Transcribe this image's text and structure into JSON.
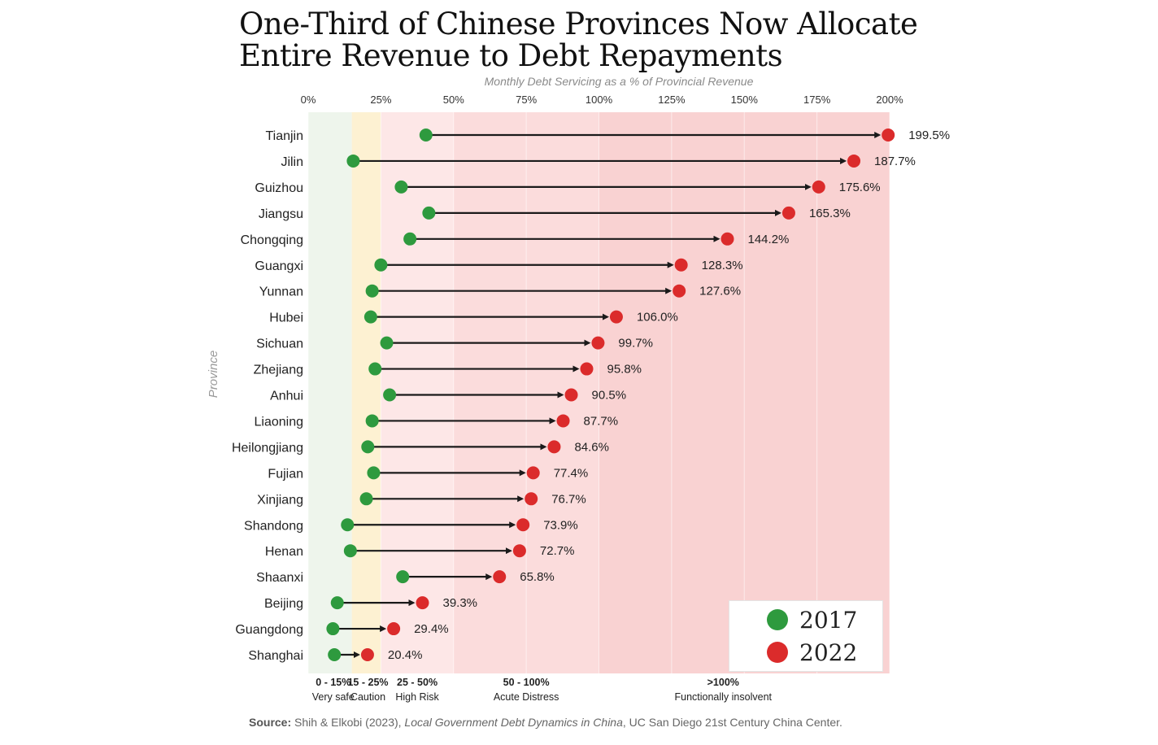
{
  "title": {
    "line1": "One-Third of Chinese Provinces Now Allocate",
    "line2": "Entire Revenue to Debt Repayments"
  },
  "colors": {
    "y2017": "#2e9a3e",
    "y2022": "#db2b2b",
    "arrow": "#1a1a1a",
    "band_very_safe": "#eef5ec",
    "band_caution": "#fdf1d2",
    "band_high_risk": "#fde7e7",
    "band_acute": "#fbdcdc",
    "band_insolvent": "#f9d2d2"
  },
  "legend": {
    "a": "2017",
    "b": "2022"
  },
  "source": {
    "label": "Source:",
    "pre": " Shih & Elkobi (2023), ",
    "italic": "Local Government Debt Dynamics in China",
    "post": ", UC San Diego 21st Century China Center."
  },
  "chart_data": {
    "type": "dumbbell",
    "title": "One-Third of Chinese Provinces Now Allocate Entire Revenue to Debt Repayments",
    "xlabel": "Monthly Debt Servicing as a % of Provincial Revenue",
    "ylabel": "Province",
    "xlim": [
      0,
      200
    ],
    "xticks": [
      0,
      25,
      50,
      75,
      100,
      125,
      150,
      175,
      200
    ],
    "xtick_labels": [
      "0%",
      "25%",
      "50%",
      "75%",
      "100%",
      "125%",
      "150%",
      "175%",
      "200%"
    ],
    "series_names": [
      "2017",
      "2022"
    ],
    "provinces": [
      {
        "name": "Tianjin",
        "v2017": 40.5,
        "v2022": 199.5,
        "label": "199.5%"
      },
      {
        "name": "Jilin",
        "v2017": 15.5,
        "v2022": 187.7,
        "label": "187.7%"
      },
      {
        "name": "Guizhou",
        "v2017": 32.0,
        "v2022": 175.6,
        "label": "175.6%"
      },
      {
        "name": "Jiangsu",
        "v2017": 41.5,
        "v2022": 165.3,
        "label": "165.3%"
      },
      {
        "name": "Chongqing",
        "v2017": 35.0,
        "v2022": 144.2,
        "label": "144.2%"
      },
      {
        "name": "Guangxi",
        "v2017": 25.0,
        "v2022": 128.3,
        "label": "128.3%"
      },
      {
        "name": "Yunnan",
        "v2017": 22.0,
        "v2022": 127.6,
        "label": "127.6%"
      },
      {
        "name": "Hubei",
        "v2017": 21.5,
        "v2022": 106.0,
        "label": "106.0%"
      },
      {
        "name": "Sichuan",
        "v2017": 27.0,
        "v2022": 99.7,
        "label": "99.7%"
      },
      {
        "name": "Zhejiang",
        "v2017": 23.0,
        "v2022": 95.8,
        "label": "95.8%"
      },
      {
        "name": "Anhui",
        "v2017": 28.0,
        "v2022": 90.5,
        "label": "90.5%"
      },
      {
        "name": "Liaoning",
        "v2017": 22.0,
        "v2022": 87.7,
        "label": "87.7%"
      },
      {
        "name": "Heilongjiang",
        "v2017": 20.5,
        "v2022": 84.6,
        "label": "84.6%"
      },
      {
        "name": "Fujian",
        "v2017": 22.5,
        "v2022": 77.4,
        "label": "77.4%"
      },
      {
        "name": "Xinjiang",
        "v2017": 20.0,
        "v2022": 76.7,
        "label": "76.7%"
      },
      {
        "name": "Shandong",
        "v2017": 13.5,
        "v2022": 73.9,
        "label": "73.9%"
      },
      {
        "name": "Henan",
        "v2017": 14.5,
        "v2022": 72.7,
        "label": "72.7%"
      },
      {
        "name": "Shaanxi",
        "v2017": 32.5,
        "v2022": 65.8,
        "label": "65.8%"
      },
      {
        "name": "Beijing",
        "v2017": 10.0,
        "v2022": 39.3,
        "label": "39.3%"
      },
      {
        "name": "Guangdong",
        "v2017": 8.5,
        "v2022": 29.4,
        "label": "29.4%"
      },
      {
        "name": "Shanghai",
        "v2017": 9.0,
        "v2022": 20.4,
        "label": "20.4%"
      }
    ],
    "bands": [
      {
        "from": 0,
        "to": 15,
        "range": "0 - 15%",
        "desc": "Very safe",
        "color_key": "band_very_safe"
      },
      {
        "from": 15,
        "to": 25,
        "range": "15 - 25%",
        "desc": "Caution",
        "color_key": "band_caution"
      },
      {
        "from": 25,
        "to": 50,
        "range": "25 - 50%",
        "desc": "High Risk",
        "color_key": "band_high_risk"
      },
      {
        "from": 50,
        "to": 100,
        "range": "50 - 100%",
        "desc": "Acute Distress",
        "color_key": "band_acute"
      },
      {
        "from": 100,
        "to": 200,
        "range": ">100%",
        "desc": "Functionally insolvent",
        "color_key": "band_insolvent"
      }
    ]
  }
}
